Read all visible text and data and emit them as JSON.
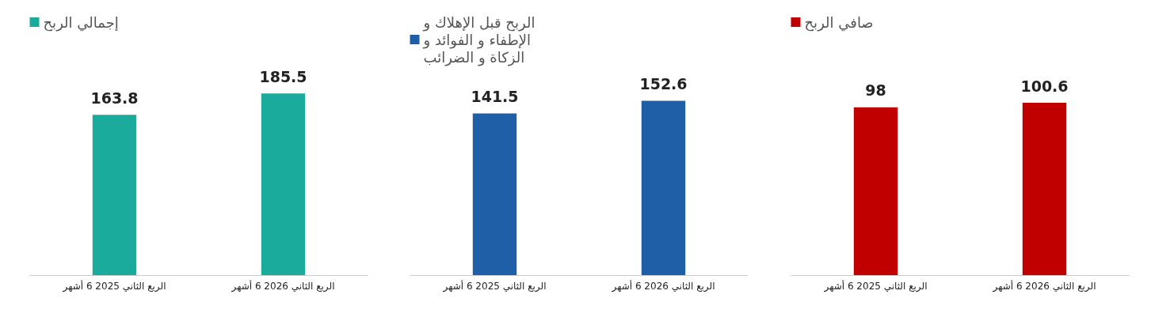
{
  "chart_data": [
    {
      "type": "bar",
      "categories": [
        "الربع الثاني 2025 6 أشهر",
        "الربع الثاني 2026 6 أشهر"
      ],
      "series": [
        {
          "name": "إجمالي الربح",
          "color": "#1aab9c",
          "values": [
            163.8,
            185.5
          ]
        }
      ],
      "data_labels": true,
      "legend": "top",
      "grid": false,
      "tick_labels": "x"
    },
    {
      "type": "bar",
      "categories": [
        "الربع الثاني 2025 6 أشهر",
        "الربع الثاني 2026 6 أشهر"
      ],
      "series": [
        {
          "name": "الربح قبل الإهلاك و الإطفاء و الفوائد و الزكاة و الضرائب",
          "color": "#1f5fa8",
          "values": [
            141.5,
            152.6
          ]
        }
      ],
      "data_labels": true,
      "legend": "top",
      "grid": false,
      "tick_labels": "x"
    },
    {
      "type": "bar",
      "categories": [
        "الربع الثاني 2025 6 أشهر",
        "الربع الثاني 2026 6 أشهر"
      ],
      "series": [
        {
          "name": "صافي الربح",
          "color": "#c00000",
          "values": [
            98,
            100.6
          ]
        }
      ],
      "data_labels": true,
      "legend": "top",
      "grid": false,
      "tick_labels": "x"
    }
  ]
}
